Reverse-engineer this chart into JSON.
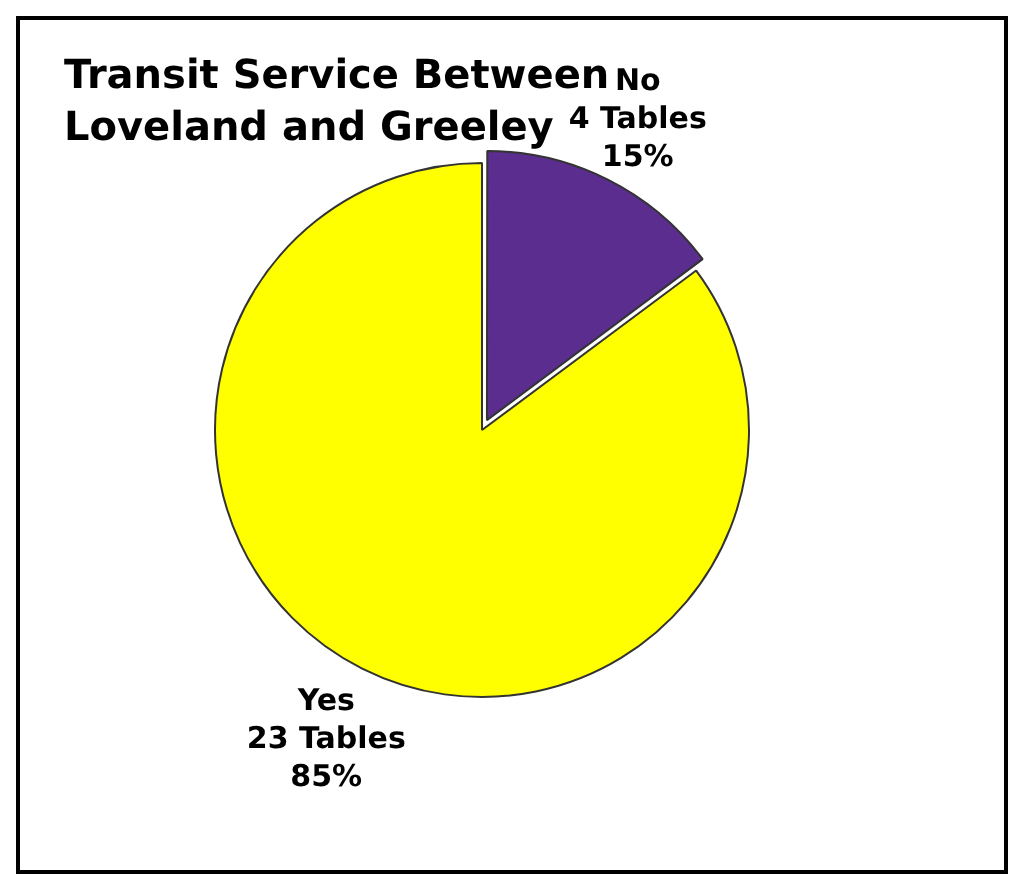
{
  "chart_data": {
    "type": "pie",
    "title": "Transit Service Between Loveland and Greeley",
    "categories": [
      "No",
      "Yes"
    ],
    "values": [
      4,
      23
    ],
    "colors": [
      "#5b2d8e",
      "#ffff00"
    ],
    "value_labels": [
      "4 Tables\n15%",
      "23 Tables\n85%"
    ],
    "legend": false
  }
}
